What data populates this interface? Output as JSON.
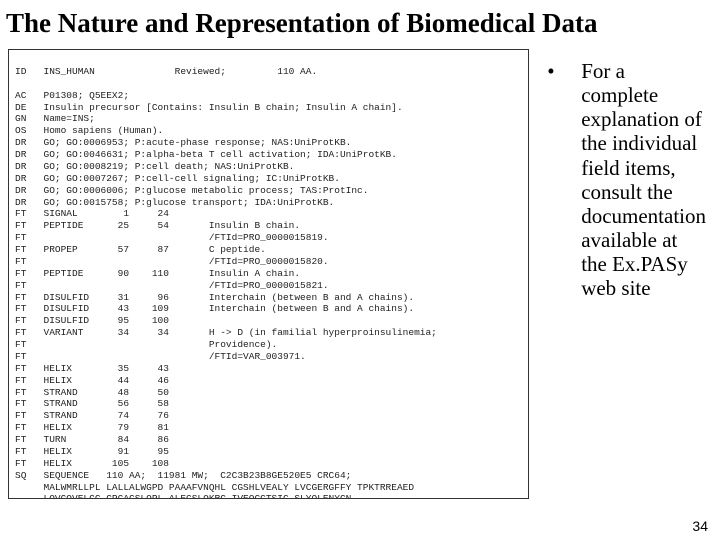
{
  "title": "The Nature and Representation of Biomedical Data",
  "bullet_text": "For a complete explanation of the individual field items, consult the documentation available at the Ex.PASy web site",
  "page_number": "34",
  "record": {
    "header": "ID   INS_HUMAN              Reviewed;         110 AA.",
    "lines": [
      "AC   P01308; Q5EEX2;",
      "DE   Insulin precursor [Contains: Insulin B chain; Insulin A chain].",
      "GN   Name=INS;",
      "OS   Homo sapiens (Human).",
      "DR   GO; GO:0006953; P:acute-phase response; NAS:UniProtKB.",
      "DR   GO; GO:0046631; P:alpha-beta T cell activation; IDA:UniProtKB.",
      "DR   GO; GO:0008219; P:cell death; NAS:UniProtKB.",
      "DR   GO; GO:0007267; P:cell-cell signaling; IC:UniProtKB.",
      "DR   GO; GO:0006006; P:glucose metabolic process; TAS:ProtInc.",
      "DR   GO; GO:0015758; P:glucose transport; IDA:UniProtKB.",
      "FT   SIGNAL        1     24",
      "FT   PEPTIDE      25     54       Insulin B chain.",
      "FT                                /FTId=PRO_0000015819.",
      "FT   PROPEP       57     87       C peptide.",
      "FT                                /FTId=PRO_0000015820.",
      "FT   PEPTIDE      90    110       Insulin A chain.",
      "FT                                /FTId=PRO_0000015821.",
      "FT   DISULFID     31     96       Interchain (between B and A chains).",
      "FT   DISULFID     43    109       Interchain (between B and A chains).",
      "FT   DISULFID     95    100",
      "FT   VARIANT      34     34       H -> D (in familial hyperproinsulinemia;",
      "FT                                Providence).",
      "FT                                /FTId=VAR_003971.",
      "FT   HELIX        35     43",
      "FT   HELIX        44     46",
      "FT   STRAND       48     50",
      "FT   STRAND       56     58",
      "FT   STRAND       74     76",
      "FT   HELIX        79     81",
      "FT   TURN         84     86",
      "FT   HELIX        91     95",
      "FT   HELIX       105    108",
      "SQ   SEQUENCE   110 AA;  11981 MW;  C2C3B23B8GE520E5 CRC64;",
      "     MALWMRLLPL LALLALWGPD PAAAFVNQHL CGSHLVEALY LVCGERGFFY TPKTRREAED",
      "     LQVGQVELGG GPGAGSLQPL ALEGSLQKRG IVEQCCTSIC SLYQLENYCN"
    ]
  }
}
